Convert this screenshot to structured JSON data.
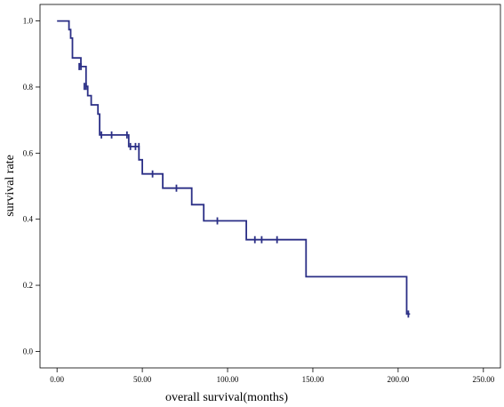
{
  "chart_data": {
    "type": "line",
    "subtype": "kaplan-meier-step",
    "title": "",
    "xlabel": "overall survival(months)",
    "ylabel": "survival rate",
    "xlim": [
      -10,
      260
    ],
    "ylim": [
      -0.05,
      1.05
    ],
    "x_ticks": [
      0,
      50,
      100,
      150,
      200,
      250
    ],
    "x_tick_labels": [
      "0.00",
      "50.00",
      "100.00",
      "150.00",
      "200.00",
      "250.00"
    ],
    "y_ticks": [
      0,
      0.2,
      0.4,
      0.6,
      0.8,
      1.0
    ],
    "y_tick_labels": [
      "0.0",
      "0.2",
      "0.4",
      "0.6",
      "0.8",
      "1.0"
    ],
    "grid": false,
    "line_color": "#2b2f86",
    "series": [
      {
        "step_points": [
          [
            0,
            1.0
          ],
          [
            7,
            1.0
          ],
          [
            7,
            0.974
          ],
          [
            8,
            0.974
          ],
          [
            8,
            0.948
          ],
          [
            9,
            0.948
          ],
          [
            9,
            0.888
          ],
          [
            14,
            0.888
          ],
          [
            14,
            0.862
          ],
          [
            17,
            0.862
          ],
          [
            17,
            0.802
          ],
          [
            18,
            0.802
          ],
          [
            18,
            0.774
          ],
          [
            20,
            0.774
          ],
          [
            20,
            0.746
          ],
          [
            24,
            0.746
          ],
          [
            24,
            0.718
          ],
          [
            25,
            0.718
          ],
          [
            25,
            0.655
          ],
          [
            42,
            0.655
          ],
          [
            42,
            0.62
          ],
          [
            48,
            0.62
          ],
          [
            48,
            0.58
          ],
          [
            50,
            0.58
          ],
          [
            50,
            0.537
          ],
          [
            62,
            0.537
          ],
          [
            62,
            0.494
          ],
          [
            79,
            0.494
          ],
          [
            79,
            0.444
          ],
          [
            86,
            0.444
          ],
          [
            86,
            0.395
          ],
          [
            111,
            0.395
          ],
          [
            111,
            0.338
          ],
          [
            146,
            0.338
          ],
          [
            146,
            0.226
          ],
          [
            205,
            0.226
          ],
          [
            205,
            0.113
          ],
          [
            207,
            0.113
          ]
        ],
        "censored": [
          [
            13,
            0.862
          ],
          [
            14,
            0.862
          ],
          [
            16,
            0.802
          ],
          [
            17,
            0.802
          ],
          [
            26,
            0.655
          ],
          [
            32,
            0.655
          ],
          [
            41,
            0.655
          ],
          [
            43,
            0.62
          ],
          [
            46,
            0.62
          ],
          [
            48,
            0.62
          ],
          [
            56,
            0.537
          ],
          [
            70,
            0.494
          ],
          [
            94,
            0.395
          ],
          [
            116,
            0.338
          ],
          [
            120,
            0.338
          ],
          [
            129,
            0.338
          ],
          [
            206,
            0.113
          ]
        ]
      }
    ]
  }
}
